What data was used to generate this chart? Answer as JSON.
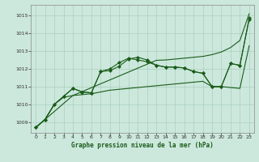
{
  "xlabel": "Graphe pression niveau de la mer (hPa)",
  "xlim": [
    -0.5,
    23.5
  ],
  "ylim": [
    1008.4,
    1015.6
  ],
  "yticks": [
    1009,
    1010,
    1011,
    1012,
    1013,
    1014,
    1015
  ],
  "xticks": [
    0,
    1,
    2,
    3,
    4,
    5,
    6,
    7,
    8,
    9,
    10,
    11,
    12,
    13,
    14,
    15,
    16,
    17,
    18,
    19,
    20,
    21,
    22,
    23
  ],
  "bg_color": "#cce8dc",
  "grid_color": "#aacfbe",
  "line_color": "#1a5c1a",
  "series": {
    "straight": [
      1008.7,
      1009.15,
      1009.6,
      1010.05,
      1010.5,
      1010.72,
      1010.94,
      1011.16,
      1011.38,
      1011.6,
      1011.82,
      1012.04,
      1012.26,
      1012.48,
      1012.5,
      1012.55,
      1012.6,
      1012.65,
      1012.7,
      1012.8,
      1012.95,
      1013.2,
      1013.6,
      1015.1
    ],
    "lower": [
      1008.7,
      1009.15,
      1010.0,
      1010.4,
      1010.5,
      1010.55,
      1010.6,
      1010.7,
      1010.8,
      1010.85,
      1010.9,
      1010.95,
      1011.0,
      1011.05,
      1011.1,
      1011.15,
      1011.2,
      1011.25,
      1011.3,
      1011.0,
      1011.0,
      1010.95,
      1010.9,
      1013.3
    ],
    "marker1": [
      1008.7,
      1009.15,
      1010.0,
      1010.45,
      1010.9,
      1010.7,
      1010.65,
      1011.85,
      1011.9,
      1012.15,
      1012.55,
      1012.65,
      1012.5,
      1012.2,
      1012.1,
      1012.1,
      1012.05,
      1011.85,
      1011.75,
      1011.0,
      1011.0,
      1012.3,
      1012.2,
      1014.8
    ],
    "marker2": [
      1008.7,
      1009.15,
      1010.0,
      1010.45,
      1010.9,
      1010.7,
      1010.65,
      1011.85,
      1012.0,
      1012.35,
      1012.6,
      1012.5,
      1012.4,
      1012.2,
      1012.1,
      1012.1,
      1012.05,
      1011.85,
      1011.75,
      1011.0,
      1011.0,
      1012.3,
      1012.2,
      1014.85
    ]
  }
}
